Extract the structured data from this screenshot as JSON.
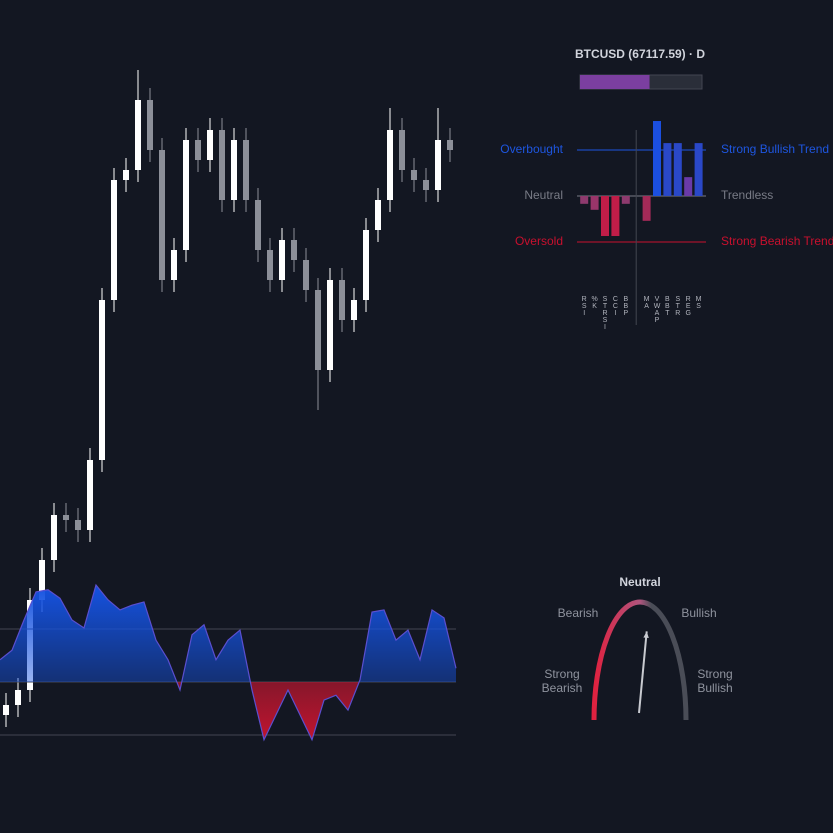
{
  "chart_data": [
    {
      "type": "candlestick",
      "open": [
        45,
        55,
        70,
        160,
        200,
        245,
        240,
        230,
        300,
        460,
        580,
        590,
        660,
        610,
        480,
        510,
        620,
        600,
        630,
        560,
        620,
        560,
        510,
        480,
        520,
        500,
        470,
        390,
        480,
        440,
        460,
        530,
        560,
        630,
        590,
        580,
        570,
        620
      ],
      "high": [
        67,
        82,
        172,
        212,
        257,
        257,
        252,
        312,
        472,
        592,
        602,
        690,
        672,
        622,
        522,
        632,
        632,
        642,
        642,
        632,
        632,
        572,
        522,
        532,
        532,
        512,
        482,
        492,
        492,
        472,
        542,
        572,
        652,
        642,
        602,
        592,
        652,
        632
      ],
      "low": [
        33,
        43,
        58,
        148,
        188,
        228,
        218,
        218,
        288,
        448,
        568,
        578,
        598,
        468,
        468,
        498,
        588,
        588,
        548,
        548,
        548,
        498,
        468,
        468,
        488,
        458,
        350,
        378,
        428,
        428,
        448,
        518,
        548,
        578,
        568,
        558,
        558,
        598
      ],
      "close": [
        55,
        70,
        160,
        200,
        245,
        240,
        230,
        300,
        460,
        580,
        590,
        660,
        610,
        480,
        510,
        620,
        600,
        630,
        560,
        620,
        560,
        510,
        480,
        520,
        500,
        470,
        390,
        480,
        440,
        460,
        530,
        560,
        630,
        590,
        580,
        570,
        620,
        610
      ],
      "ylim": [
        0,
        720
      ],
      "up_color": "#ffffff",
      "down_color": "#8c8f98"
    },
    {
      "type": "area",
      "values": [
        0.42,
        0.6,
        1.17,
        1.7,
        1.74,
        1.58,
        1.17,
        1.02,
        1.83,
        1.55,
        1.36,
        1.45,
        1.51,
        0.79,
        0.42,
        -0.15,
        0.89,
        1.08,
        0.42,
        0.79,
        0.98,
        -0.15,
        -1.09,
        -0.62,
        -0.15,
        -0.62,
        -1.09,
        -0.34,
        -0.25,
        -0.53,
        0.04,
        1.32,
        1.36,
        0.79,
        0.98,
        0.42,
        1.36,
        1.21,
        0.26
      ],
      "ylim": [
        -1.5,
        2
      ],
      "levels": [
        1,
        0,
        -1
      ],
      "color_pos": "#1552e0",
      "color_neg": "#c0152f",
      "line_color": "#5b4fd0"
    },
    {
      "type": "progress",
      "title": "BTCUSD (67117.59) · D",
      "value": 57,
      "xlim": [
        0,
        100
      ],
      "color": "#7b3fa0",
      "track_color": "#2a2e39"
    },
    {
      "type": "bar",
      "categories": [
        "RSI",
        "%K",
        "STRSI",
        "CCI",
        "BBP",
        null,
        "MA",
        "VWAP",
        "BBT",
        "STR",
        "REG",
        "MS"
      ],
      "values": [
        -0.17,
        -0.3,
        -0.87,
        -0.87,
        -0.17,
        null,
        -0.54,
        1.63,
        1.15,
        1.15,
        0.41,
        1.15
      ],
      "colors": [
        "#8e3a6e",
        "#9a356a",
        "#c01d48",
        "#c01d48",
        "#8e3a6e",
        null,
        "#a42a58",
        "#1b4fe0",
        "#2a48c8",
        "#2a48c8",
        "#6a3aa8",
        "#2a48c8"
      ],
      "ylim": [
        -1.7,
        1.7
      ],
      "levels": [
        {
          "value": 1,
          "label": "Overbought",
          "right_label": "Strong Bullish Trend",
          "color": "#1e56e0"
        },
        {
          "value": 0,
          "label": "Neutral",
          "right_label": "Trendless",
          "color": "#787b86"
        },
        {
          "value": -1,
          "label": "Oversold",
          "right_label": "Strong Bearish Trend",
          "color": "#c8102e"
        }
      ]
    },
    {
      "type": "gauge",
      "title": "Neutral",
      "value": 0.06,
      "xlim": [
        -1,
        1
      ],
      "labels": [
        "Strong Bearish",
        "Bearish",
        "Bullish",
        "Strong Bullish"
      ]
    }
  ]
}
